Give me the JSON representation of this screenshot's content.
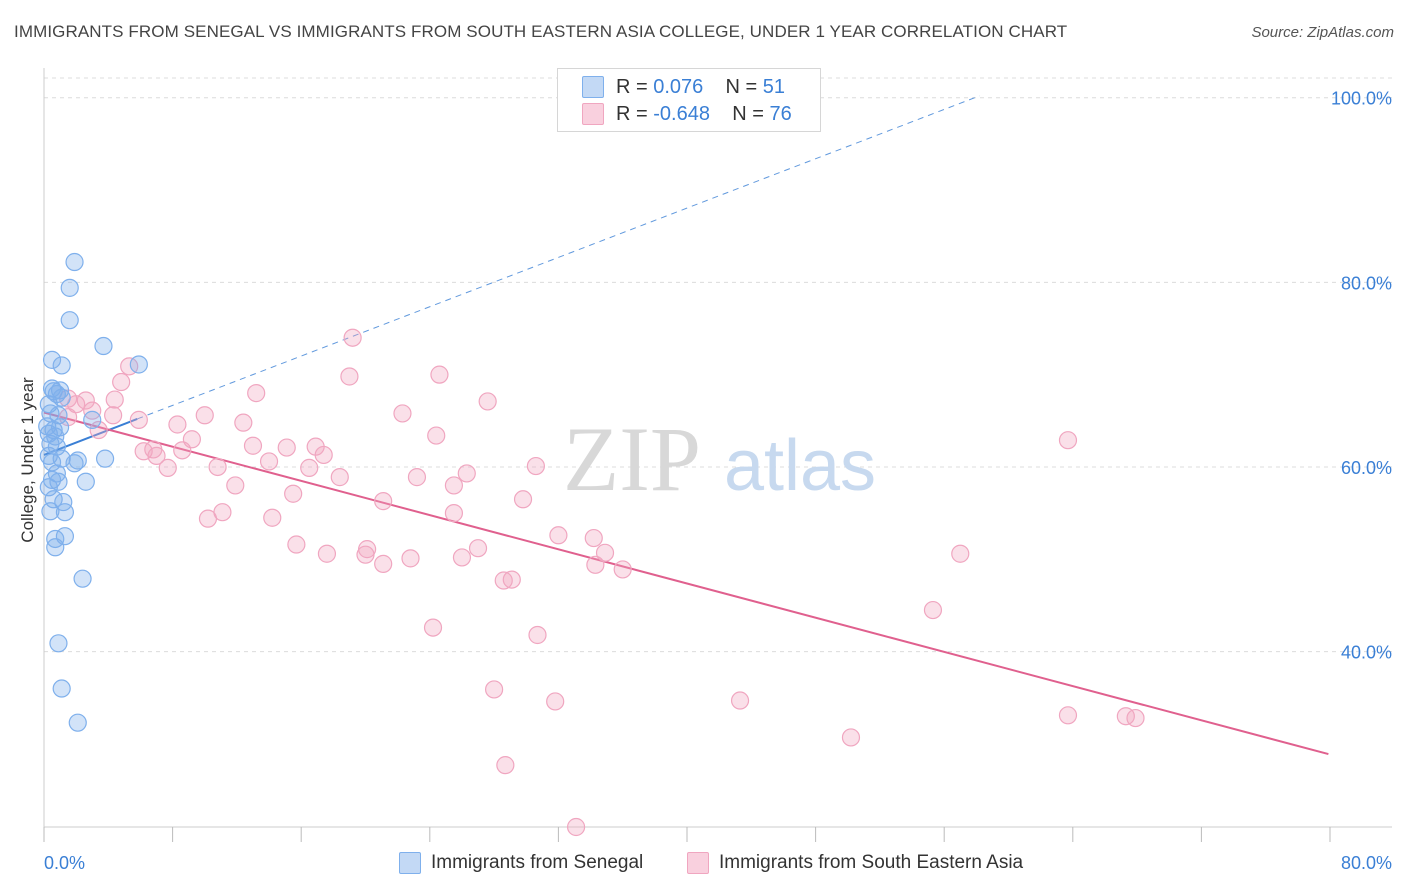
{
  "title": "IMMIGRANTS FROM SENEGAL VS IMMIGRANTS FROM SOUTH EASTERN ASIA COLLEGE, UNDER 1 YEAR CORRELATION CHART",
  "source": "Source: ZipAtlas.com",
  "watermark": {
    "zip": "ZIP",
    "atlas": "atlas"
  },
  "legend": {
    "rows": [
      {
        "r_label": "R = ",
        "r_value": "0.076",
        "n_label": "N = ",
        "n_value": "51"
      },
      {
        "r_label": "R = ",
        "r_value": "-0.648",
        "n_label": "N = ",
        "n_value": "76"
      }
    ]
  },
  "colors": {
    "senegal": "#7fb0ec",
    "senegal_line": "#3a7fd5",
    "sea": "#f0a6c0",
    "sea_line": "#e0608e",
    "tick": "#3a7fd5"
  },
  "chart_data": {
    "type": "scatter",
    "title": "IMMIGRANTS FROM SENEGAL VS IMMIGRANTS FROM SOUTH EASTERN ASIA COLLEGE, UNDER 1 YEAR CORRELATION CHART",
    "xlabel": "",
    "ylabel": "College, Under 1 year",
    "xlim": [
      0,
      80
    ],
    "ylim": [
      21,
      103
    ],
    "x_tick_labels": [
      "0.0%",
      "80.0%"
    ],
    "y_ticks": [
      40,
      60,
      80,
      100
    ],
    "y_tick_labels": [
      "40.0%",
      "60.0%",
      "80.0%",
      "100.0%"
    ],
    "grid": true,
    "series": [
      {
        "name": "Immigrants from Senegal",
        "r": 0.076,
        "n": 51,
        "trend": {
          "x": [
            0.0,
            5.8
          ],
          "y": [
            61.3,
            65.2
          ]
        },
        "trend_ext": {
          "x": [
            5.8,
            58.2
          ],
          "y": [
            65.2,
            100.2
          ]
        },
        "points": [
          [
            1.9,
            82.2
          ],
          [
            1.6,
            79.4
          ],
          [
            1.6,
            75.9
          ],
          [
            3.7,
            73.1
          ],
          [
            0.5,
            71.6
          ],
          [
            1.1,
            71.0
          ],
          [
            5.9,
            71.1
          ],
          [
            0.5,
            68.5
          ],
          [
            0.6,
            68.2
          ],
          [
            1.0,
            68.3
          ],
          [
            0.8,
            67.9
          ],
          [
            1.1,
            67.5
          ],
          [
            0.3,
            66.8
          ],
          [
            0.4,
            65.8
          ],
          [
            0.9,
            65.6
          ],
          [
            3.0,
            65.1
          ],
          [
            0.2,
            64.4
          ],
          [
            0.6,
            64.0
          ],
          [
            1.0,
            64.3
          ],
          [
            0.3,
            63.6
          ],
          [
            0.7,
            63.3
          ],
          [
            0.4,
            62.5
          ],
          [
            0.8,
            62.2
          ],
          [
            0.3,
            61.2
          ],
          [
            1.1,
            60.9
          ],
          [
            0.5,
            60.5
          ],
          [
            2.1,
            60.7
          ],
          [
            3.8,
            60.9
          ],
          [
            1.9,
            60.4
          ],
          [
            0.8,
            59.3
          ],
          [
            0.5,
            58.6
          ],
          [
            0.9,
            58.4
          ],
          [
            2.6,
            58.4
          ],
          [
            0.3,
            57.8
          ],
          [
            0.6,
            56.5
          ],
          [
            1.2,
            56.2
          ],
          [
            0.4,
            55.2
          ],
          [
            1.3,
            55.1
          ],
          [
            1.3,
            52.5
          ],
          [
            0.7,
            52.2
          ],
          [
            0.7,
            51.3
          ],
          [
            2.4,
            47.9
          ],
          [
            0.9,
            40.9
          ],
          [
            1.1,
            36.0
          ],
          [
            2.1,
            32.3
          ]
        ]
      },
      {
        "name": "Immigrants from South Eastern Asia",
        "r": -0.648,
        "n": 76,
        "trend": {
          "x": [
            0.0,
            79.9
          ],
          "y": [
            65.9,
            28.9
          ]
        },
        "points": [
          [
            19.2,
            74.0
          ],
          [
            5.3,
            70.9
          ],
          [
            4.8,
            69.2
          ],
          [
            19.0,
            69.8
          ],
          [
            24.6,
            70.0
          ],
          [
            13.2,
            68.0
          ],
          [
            1.5,
            67.4
          ],
          [
            2.6,
            67.2
          ],
          [
            4.4,
            67.3
          ],
          [
            27.6,
            67.1
          ],
          [
            2.0,
            66.8
          ],
          [
            3.0,
            66.1
          ],
          [
            4.3,
            65.6
          ],
          [
            10.0,
            65.6
          ],
          [
            22.3,
            65.8
          ],
          [
            1.5,
            65.4
          ],
          [
            5.9,
            65.1
          ],
          [
            8.3,
            64.6
          ],
          [
            12.4,
            64.8
          ],
          [
            3.4,
            64.0
          ],
          [
            9.2,
            63.0
          ],
          [
            24.4,
            63.4
          ],
          [
            63.7,
            62.9
          ],
          [
            13.0,
            62.3
          ],
          [
            15.1,
            62.1
          ],
          [
            16.9,
            62.2
          ],
          [
            6.2,
            61.7
          ],
          [
            6.8,
            61.9
          ],
          [
            8.6,
            61.8
          ],
          [
            7.0,
            61.2
          ],
          [
            17.4,
            61.3
          ],
          [
            14.0,
            60.6
          ],
          [
            30.6,
            60.1
          ],
          [
            7.7,
            59.9
          ],
          [
            10.8,
            60.0
          ],
          [
            16.5,
            59.9
          ],
          [
            26.3,
            59.3
          ],
          [
            18.4,
            58.9
          ],
          [
            23.2,
            58.9
          ],
          [
            11.9,
            58.0
          ],
          [
            25.5,
            58.0
          ],
          [
            15.5,
            57.1
          ],
          [
            21.1,
            56.3
          ],
          [
            29.8,
            56.5
          ],
          [
            11.1,
            55.1
          ],
          [
            10.2,
            54.4
          ],
          [
            14.2,
            54.5
          ],
          [
            25.5,
            55.0
          ],
          [
            32.0,
            52.6
          ],
          [
            34.2,
            52.3
          ],
          [
            15.7,
            51.6
          ],
          [
            20.1,
            51.1
          ],
          [
            27.0,
            51.2
          ],
          [
            20.0,
            50.5
          ],
          [
            17.6,
            50.6
          ],
          [
            22.8,
            50.1
          ],
          [
            26.0,
            50.2
          ],
          [
            34.9,
            50.7
          ],
          [
            57.0,
            50.6
          ],
          [
            21.1,
            49.5
          ],
          [
            34.3,
            49.4
          ],
          [
            36.0,
            48.9
          ],
          [
            29.1,
            47.8
          ],
          [
            28.6,
            47.7
          ],
          [
            24.2,
            42.6
          ],
          [
            30.7,
            41.8
          ],
          [
            55.3,
            44.5
          ],
          [
            28.0,
            35.9
          ],
          [
            31.8,
            34.6
          ],
          [
            43.3,
            34.7
          ],
          [
            63.7,
            33.1
          ],
          [
            67.3,
            33.0
          ],
          [
            67.9,
            32.8
          ],
          [
            50.2,
            30.7
          ],
          [
            28.7,
            27.7
          ],
          [
            33.1,
            21.0
          ]
        ]
      }
    ]
  },
  "bottom_legend": [
    "Immigrants from Senegal",
    "Immigrants from South Eastern Asia"
  ]
}
